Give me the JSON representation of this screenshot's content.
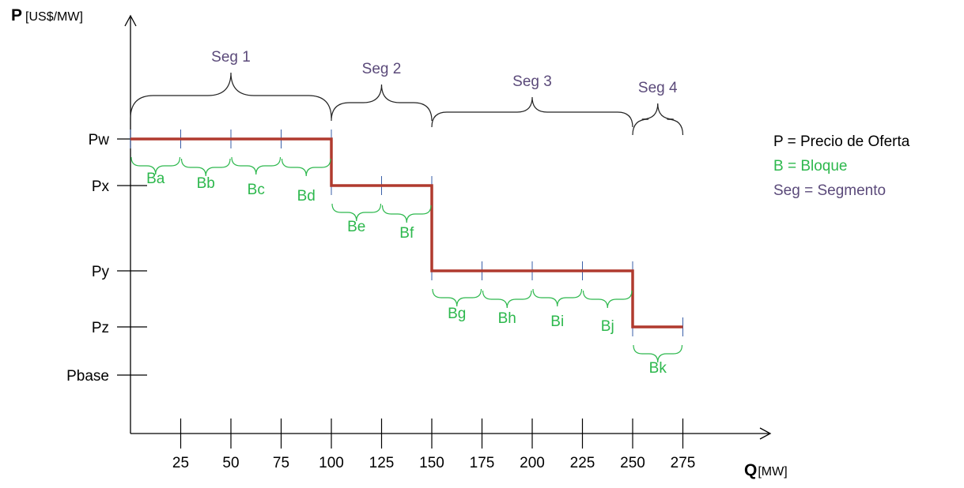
{
  "axes": {
    "y_title": "P",
    "y_unit": "[US$/MW]",
    "x_title": "Q",
    "x_unit": "[MW]"
  },
  "price_levels": [
    "Pw",
    "Px",
    "Py",
    "Pz",
    "Pbase"
  ],
  "quantity_ticks": [
    "25",
    "50",
    "75",
    "100",
    "125",
    "150",
    "175",
    "200",
    "225",
    "250",
    "275"
  ],
  "segments": [
    {
      "label": "Seg 1",
      "from": 0,
      "to": 100,
      "price": "Pw"
    },
    {
      "label": "Seg 2",
      "from": 100,
      "to": 150,
      "price": "Px"
    },
    {
      "label": "Seg 3",
      "from": 150,
      "to": 250,
      "price": "Py"
    },
    {
      "label": "Seg 4",
      "from": 250,
      "to": 275,
      "price": "Pz"
    }
  ],
  "blocks": [
    {
      "label": "Ba",
      "from": 0,
      "to": 25
    },
    {
      "label": "Bb",
      "from": 25,
      "to": 50
    },
    {
      "label": "Bc",
      "from": 50,
      "to": 75
    },
    {
      "label": "Bd",
      "from": 75,
      "to": 100
    },
    {
      "label": "Be",
      "from": 100,
      "to": 125
    },
    {
      "label": "Bf",
      "from": 125,
      "to": 150
    },
    {
      "label": "Bg",
      "from": 150,
      "to": 175
    },
    {
      "label": "Bh",
      "from": 175,
      "to": 200
    },
    {
      "label": "Bi",
      "from": 200,
      "to": 225
    },
    {
      "label": "Bj",
      "from": 225,
      "to": 250
    },
    {
      "label": "Bk",
      "from": 250,
      "to": 275
    }
  ],
  "legend": {
    "price": "P = Precio de Oferta",
    "block": "B = Bloque",
    "segment": "Seg =  Segmento"
  },
  "colors": {
    "step_line": "#b03a2e",
    "block_brace": "#2db84d",
    "segment_label": "#5b4a7a",
    "tick": "#3a5fa8",
    "axis": "#000000"
  }
}
